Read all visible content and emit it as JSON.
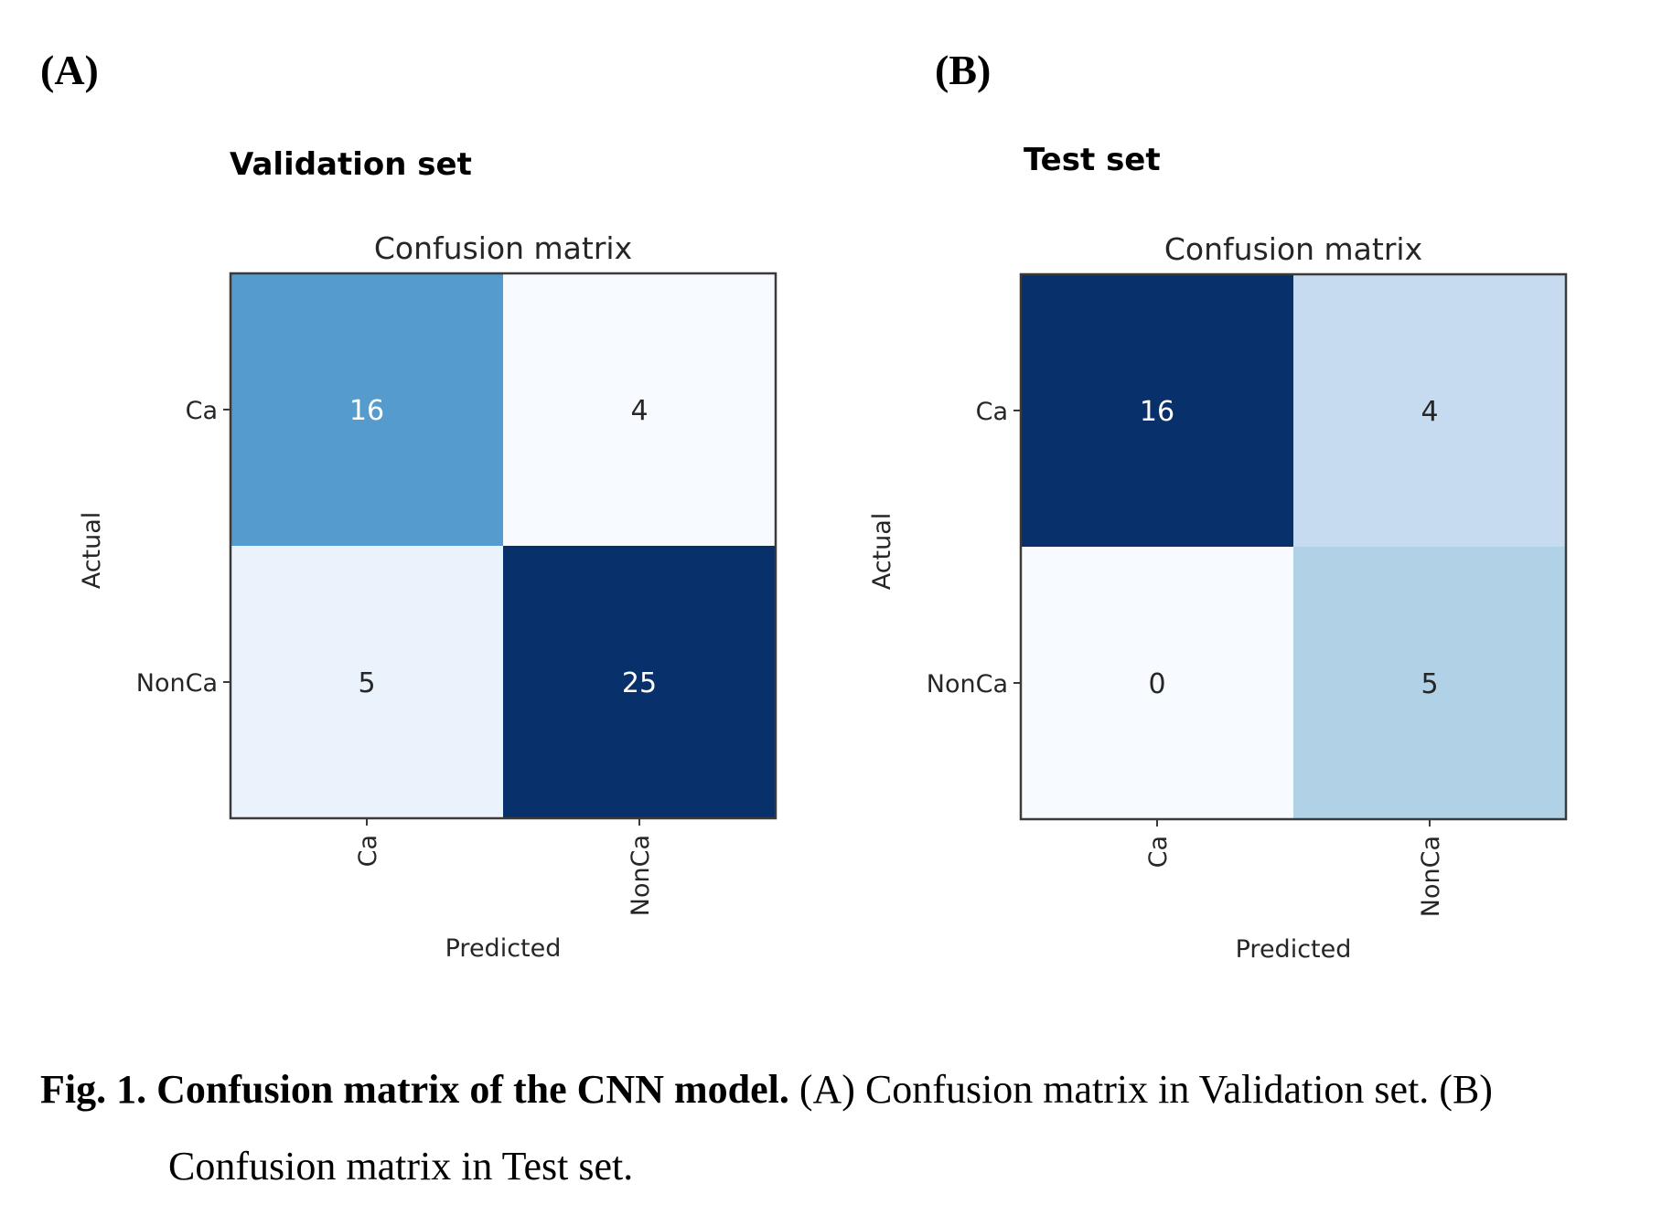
{
  "panels": [
    {
      "label": "(A)",
      "set_title": "Validation set"
    },
    {
      "label": "(B)",
      "set_title": "Test set"
    }
  ],
  "caption": {
    "bold": "Fig. 1. Confusion matrix of the CNN model.",
    "line1_rest": " (A) Confusion matrix in Validation set. (B)",
    "line2": "Confusion matrix in Test set."
  },
  "chart_data": [
    {
      "type": "heatmap",
      "title": "Confusion matrix",
      "panel": "Validation set",
      "xlabel": "Predicted",
      "ylabel": "Actual",
      "x_categories": [
        "Ca",
        "NonCa"
      ],
      "y_categories": [
        "Ca",
        "NonCa"
      ],
      "values": [
        [
          16,
          4
        ],
        [
          5,
          25
        ]
      ],
      "colormap": "Blues",
      "cell_colors": [
        [
          "#559bcd",
          "#f7fbff"
        ],
        [
          "#eaf2fb",
          "#08306b"
        ]
      ],
      "text_colors": [
        [
          "#ffffff",
          "#262626"
        ],
        [
          "#262626",
          "#ffffff"
        ]
      ],
      "grid": false
    },
    {
      "type": "heatmap",
      "title": "Confusion matrix",
      "panel": "Test set",
      "xlabel": "Predicted",
      "ylabel": "Actual",
      "x_categories": [
        "Ca",
        "NonCa"
      ],
      "y_categories": [
        "Ca",
        "NonCa"
      ],
      "values": [
        [
          16,
          4
        ],
        [
          0,
          5
        ]
      ],
      "colormap": "Blues",
      "cell_colors": [
        [
          "#08306b",
          "#c6dbef"
        ],
        [
          "#f7fbff",
          "#b0d1e6"
        ]
      ],
      "text_colors": [
        [
          "#ffffff",
          "#262626"
        ],
        [
          "#262626",
          "#262626"
        ]
      ],
      "grid": false
    }
  ]
}
